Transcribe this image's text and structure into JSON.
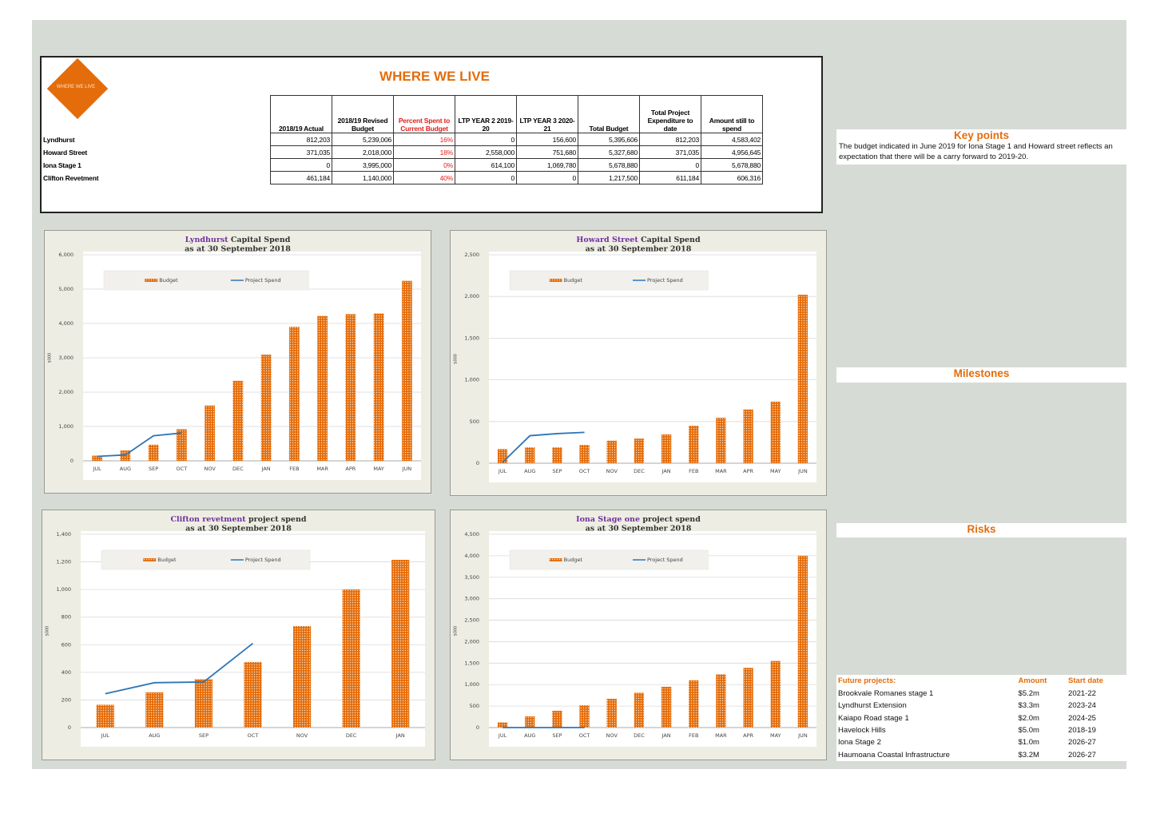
{
  "logo": {
    "text": "WHERE WE LIVE"
  },
  "header": {
    "title": "WHERE WE LIVE"
  },
  "table": {
    "columns": [
      "2018/19 Actual",
      "2018/19 Revised Budget",
      "Percent Spent to Current Budget",
      "LTP YEAR 2 2019-20",
      "LTP YEAR 3 2020-21",
      "Total Budget",
      "Total Project Expenditure to date",
      "Amount still to spend"
    ],
    "rows": [
      [
        "Lyndhurst",
        "812,203",
        "5,239,006",
        "16%",
        "0",
        "156,600",
        "5,395,606",
        "812,203",
        "4,583,402"
      ],
      [
        "Howard Street",
        "371,035",
        "2,018,000",
        "18%",
        "2,558,000",
        "751,680",
        "5,327,680",
        "371,035",
        "4,956,645"
      ],
      [
        "Iona Stage 1",
        "0",
        "3,995,000",
        "0%",
        "614,100",
        "1,069,780",
        "5,678,880",
        "0",
        "5,678,880"
      ],
      [
        "Clifton Revetment",
        "461,184",
        "1,140,000",
        "40%",
        "0",
        "0",
        "1,217,500",
        "611,184",
        "606,316"
      ]
    ]
  },
  "chart_data": [
    {
      "type": "bar",
      "title": {
        "highlight": "Lyndhurst",
        "rest": "Capital Spend"
      },
      "subtitle": "as at 30 September 2018",
      "ylabel": "$000",
      "categories": [
        "JUL",
        "AUG",
        "SEP",
        "OCT",
        "NOV",
        "DEC",
        "JAN",
        "FEB",
        "MAR",
        "APR",
        "MAY",
        "JUN"
      ],
      "series": [
        {
          "name": "Budget",
          "type": "bar",
          "color": "#e46c0a",
          "values": [
            150,
            300,
            470,
            920,
            1610,
            2330,
            3090,
            3900,
            4220,
            4270,
            4290,
            5240
          ]
        },
        {
          "name": "Project Spend",
          "type": "line",
          "color": "#2e75b6",
          "values": [
            130,
            170,
            730,
            810,
            null,
            null,
            null,
            null,
            null,
            null,
            null,
            null
          ]
        }
      ],
      "ylim": [
        0,
        6000
      ],
      "yticks": [
        0,
        {
          "value": 1000,
          "label": "1,000"
        },
        {
          "value": 2000,
          "label": "2,000"
        },
        {
          "value": 3000,
          "label": "3,000"
        },
        {
          "value": 4000,
          "label": "4,000"
        },
        {
          "value": 5000,
          "label": "5,000"
        },
        {
          "value": 6000,
          "label": "6,000"
        }
      ],
      "grid": true,
      "legend": "top"
    },
    {
      "type": "bar",
      "title": {
        "highlight": "Howard Street",
        "rest": "Capital Spend"
      },
      "subtitle": "as at 30 September 2018",
      "ylabel": "$000",
      "categories": [
        "JUL",
        "AUG",
        "SEP",
        "OCT",
        "NOV",
        "DEC",
        "JAN",
        "FEB",
        "MAR",
        "APR",
        "MAY",
        "JUN"
      ],
      "series": [
        {
          "name": "Budget",
          "type": "bar",
          "color": "#e46c0a",
          "values": [
            170,
            190,
            190,
            220,
            270,
            295,
            345,
            450,
            545,
            645,
            740,
            2020
          ]
        },
        {
          "name": "Project Spend",
          "type": "line",
          "color": "#2e75b6",
          "values": [
            10,
            330,
            355,
            370,
            null,
            null,
            null,
            null,
            null,
            null,
            null,
            null
          ]
        }
      ],
      "ylim": [
        0,
        2500
      ],
      "yticks": [
        0,
        500,
        {
          "value": 1000,
          "label": "1,000"
        },
        {
          "value": 1500,
          "label": "1,500"
        },
        {
          "value": 2000,
          "label": "2,000"
        },
        {
          "value": 2500,
          "label": "2,500"
        }
      ],
      "grid": true,
      "legend": "top"
    },
    {
      "type": "bar",
      "title": {
        "highlight": "Clifton revetment",
        "rest": "project spend"
      },
      "subtitle": "as at 30 September 2018",
      "ylabel": "$000",
      "categories": [
        "JUL",
        "AUG",
        "SEP",
        "OCT",
        "NOV",
        "DEC",
        "JAN"
      ],
      "series": [
        {
          "name": "Budget",
          "type": "bar",
          "color": "#e46c0a",
          "values": [
            165,
            255,
            350,
            475,
            735,
            1000,
            1215
          ]
        },
        {
          "name": "Project Spend",
          "type": "line",
          "color": "#2e75b6",
          "values": [
            245,
            325,
            330,
            610,
            null,
            null,
            null
          ]
        }
      ],
      "ylim": [
        0,
        1400
      ],
      "yticks": [
        0,
        200,
        400,
        600,
        800,
        {
          "value": 1000,
          "label": "1,000"
        },
        {
          "value": 1200,
          "label": "1,200"
        },
        {
          "value": 1400,
          "label": "1,400"
        }
      ],
      "grid": true,
      "legend": "top"
    },
    {
      "type": "bar",
      "title": {
        "highlight": "Iona Stage one",
        "rest": "project spend"
      },
      "subtitle": "as at 30 September 2018",
      "ylabel": "$000",
      "categories": [
        "JUL",
        "AUG",
        "SEP",
        "OCT",
        "NOV",
        "DEC",
        "JAN",
        "FEB",
        "MAR",
        "APR",
        "MAY",
        "JUN"
      ],
      "series": [
        {
          "name": "Budget",
          "type": "bar",
          "color": "#e46c0a",
          "values": [
            120,
            260,
            390,
            520,
            670,
            810,
            950,
            1100,
            1240,
            1390,
            1550,
            4000
          ]
        },
        {
          "name": "Project Spend",
          "type": "line",
          "color": "#2e75b6",
          "values": [
            0,
            0,
            0,
            0,
            null,
            null,
            null,
            null,
            null,
            null,
            null,
            null
          ]
        }
      ],
      "ylim": [
        0,
        4500
      ],
      "yticks": [
        0,
        500,
        {
          "value": 1000,
          "label": "1,000"
        },
        {
          "value": 1500,
          "label": "1,500"
        },
        {
          "value": 2000,
          "label": "2,000"
        },
        {
          "value": 2500,
          "label": "2,500"
        },
        {
          "value": 3000,
          "label": "3,000"
        },
        {
          "value": 3500,
          "label": "3,500"
        },
        {
          "value": 4000,
          "label": "4,000"
        },
        {
          "value": 4500,
          "label": "4,500"
        }
      ],
      "grid": true,
      "legend": "top"
    }
  ],
  "key_points": {
    "title": "Key points",
    "text": "The budget indicated in June 2019 for Iona Stage 1 and Howard street reflects an expectation that there will be a carry forward to 2019-20."
  },
  "milestones": {
    "title": "Milestones"
  },
  "risks": {
    "title": "Risks"
  },
  "future_projects": {
    "columns": [
      "Future projects:",
      "Amount",
      "Start date"
    ],
    "rows": [
      [
        "Brookvale Romanes stage 1",
        "$5.2m",
        "2021-22"
      ],
      [
        "Lyndhurst Extension",
        "$3.3m",
        "2023-24"
      ],
      [
        "Kaiapo Road stage 1",
        "$2.0m",
        "2024-25"
      ],
      [
        "Havelock Hills",
        "$5.0m",
        "2018-19"
      ],
      [
        "Iona Stage 2",
        "$1.0m",
        "2026-27"
      ],
      [
        "Haumoana Coastal Infrastructure",
        "$3.2M",
        "2026-27"
      ]
    ]
  }
}
